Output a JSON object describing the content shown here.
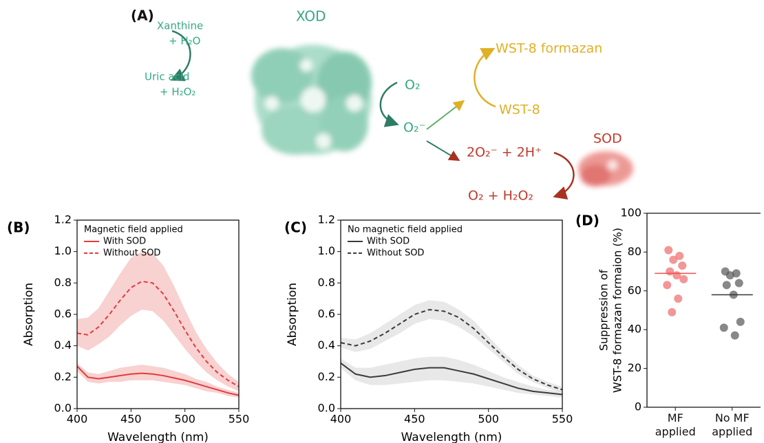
{
  "diagram": {
    "label": "(A)",
    "xod": "XOD",
    "xanthine": "Xanthine",
    "water": "+ H₂O",
    "uric_acid": "Uric acid",
    "peroxide": "+ H₂O₂",
    "oxygen": "O₂",
    "superoxide": "O₂⁻",
    "formazan": "WST-8 formazan",
    "wst8": "WST-8",
    "sod": "SOD",
    "dismutation_in": "2O₂⁻ + 2H⁺",
    "dismutation_out": "O₂ + H₂O₂"
  },
  "chart_data": [
    {
      "type": "line",
      "label": "(B)",
      "xlabel": "Wavelength (nm)",
      "ylabel": "Absorption",
      "legend_title": "Magnetic field applied",
      "legend": "upper left",
      "x": [
        400,
        410,
        420,
        430,
        440,
        450,
        460,
        470,
        480,
        490,
        500,
        510,
        520,
        530,
        540,
        550
      ],
      "xlim": [
        400,
        550
      ],
      "xticks": [
        400,
        450,
        500,
        550
      ],
      "ylim": [
        0,
        1.2
      ],
      "yticks": [
        {
          "value": 0,
          "label": "0.0"
        },
        0.2,
        0.4,
        0.6,
        0.8,
        {
          "value": 1,
          "label": "1.0"
        },
        1.2
      ],
      "series": [
        {
          "name": "With SOD",
          "color": "#e23b3b",
          "band_color": "#f4b3b3",
          "dash": false,
          "values": [
            0.27,
            0.2,
            0.19,
            0.2,
            0.21,
            0.22,
            0.225,
            0.22,
            0.21,
            0.195,
            0.18,
            0.16,
            0.14,
            0.12,
            0.1,
            0.085
          ],
          "band_upper": [
            0.29,
            0.23,
            0.22,
            0.24,
            0.26,
            0.27,
            0.28,
            0.27,
            0.26,
            0.24,
            0.22,
            0.19,
            0.17,
            0.14,
            0.12,
            0.1
          ],
          "band_lower": [
            0.24,
            0.17,
            0.16,
            0.17,
            0.17,
            0.18,
            0.18,
            0.18,
            0.17,
            0.16,
            0.15,
            0.13,
            0.11,
            0.1,
            0.08,
            0.07
          ]
        },
        {
          "name": "Without SOD",
          "color": "#e23b3b",
          "band_color": "#f4b3b3",
          "dash": true,
          "values": [
            0.48,
            0.47,
            0.52,
            0.6,
            0.69,
            0.77,
            0.81,
            0.8,
            0.73,
            0.62,
            0.5,
            0.39,
            0.3,
            0.23,
            0.18,
            0.14
          ],
          "band_upper": [
            0.57,
            0.58,
            0.64,
            0.75,
            0.86,
            0.96,
            1.0,
            0.99,
            0.91,
            0.78,
            0.63,
            0.49,
            0.38,
            0.29,
            0.22,
            0.17
          ],
          "band_lower": [
            0.4,
            0.37,
            0.41,
            0.46,
            0.53,
            0.59,
            0.63,
            0.62,
            0.56,
            0.47,
            0.38,
            0.3,
            0.23,
            0.18,
            0.14,
            0.11
          ]
        }
      ]
    },
    {
      "type": "line",
      "label": "(C)",
      "xlabel": "Wavelength (nm)",
      "ylabel": "Absorption",
      "legend_title": "No magnetic field applied",
      "legend": "upper left",
      "x": [
        400,
        410,
        420,
        430,
        440,
        450,
        460,
        470,
        480,
        490,
        500,
        510,
        520,
        530,
        540,
        550
      ],
      "xlim": [
        400,
        550
      ],
      "xticks": [
        400,
        450,
        500,
        550
      ],
      "ylim": [
        0,
        1.2
      ],
      "yticks": [
        {
          "value": 0,
          "label": "0.0"
        },
        0.2,
        0.4,
        0.6,
        0.8,
        {
          "value": 1,
          "label": "1.0"
        },
        1.2
      ],
      "series": [
        {
          "name": "With SOD",
          "color": "#3a3a3a",
          "band_color": "#d8d8d8",
          "dash": false,
          "values": [
            0.29,
            0.22,
            0.2,
            0.21,
            0.23,
            0.25,
            0.26,
            0.26,
            0.24,
            0.22,
            0.19,
            0.16,
            0.13,
            0.11,
            0.1,
            0.09
          ],
          "band_upper": [
            0.32,
            0.26,
            0.26,
            0.28,
            0.3,
            0.32,
            0.33,
            0.33,
            0.31,
            0.28,
            0.24,
            0.2,
            0.17,
            0.14,
            0.12,
            0.11
          ],
          "band_lower": [
            0.26,
            0.18,
            0.15,
            0.15,
            0.16,
            0.17,
            0.18,
            0.18,
            0.17,
            0.16,
            0.14,
            0.12,
            0.1,
            0.09,
            0.08,
            0.07
          ]
        },
        {
          "name": "Without SOD",
          "color": "#3a3a3a",
          "band_color": "#d8d8d8",
          "dash": true,
          "values": [
            0.42,
            0.4,
            0.43,
            0.48,
            0.54,
            0.6,
            0.63,
            0.62,
            0.58,
            0.51,
            0.42,
            0.33,
            0.25,
            0.19,
            0.15,
            0.12
          ],
          "band_upper": [
            0.45,
            0.44,
            0.48,
            0.54,
            0.6,
            0.66,
            0.69,
            0.68,
            0.63,
            0.56,
            0.46,
            0.36,
            0.28,
            0.21,
            0.17,
            0.14
          ],
          "band_lower": [
            0.39,
            0.36,
            0.38,
            0.43,
            0.48,
            0.54,
            0.57,
            0.56,
            0.52,
            0.46,
            0.38,
            0.3,
            0.22,
            0.17,
            0.13,
            0.1
          ]
        }
      ]
    },
    {
      "type": "strip",
      "label": "(D)",
      "ylabel": [
        "Suppression of",
        "WST-8 formazan formaion (%)"
      ],
      "categories": [
        "MF applied",
        "No MF applied"
      ],
      "colors": [
        "#ee6a6a",
        "#555555"
      ],
      "mean_colors": [
        "#ee4d4d",
        "#333333"
      ],
      "values": [
        [
          81,
          78,
          76,
          73,
          70,
          68,
          66,
          63,
          56,
          49
        ],
        [
          70,
          69,
          68,
          64,
          63,
          58,
          44,
          41,
          37
        ]
      ],
      "means": [
        69,
        58
      ],
      "ylim": [
        0,
        100
      ],
      "yticks": [
        0,
        20,
        40,
        60,
        80,
        100
      ]
    }
  ]
}
